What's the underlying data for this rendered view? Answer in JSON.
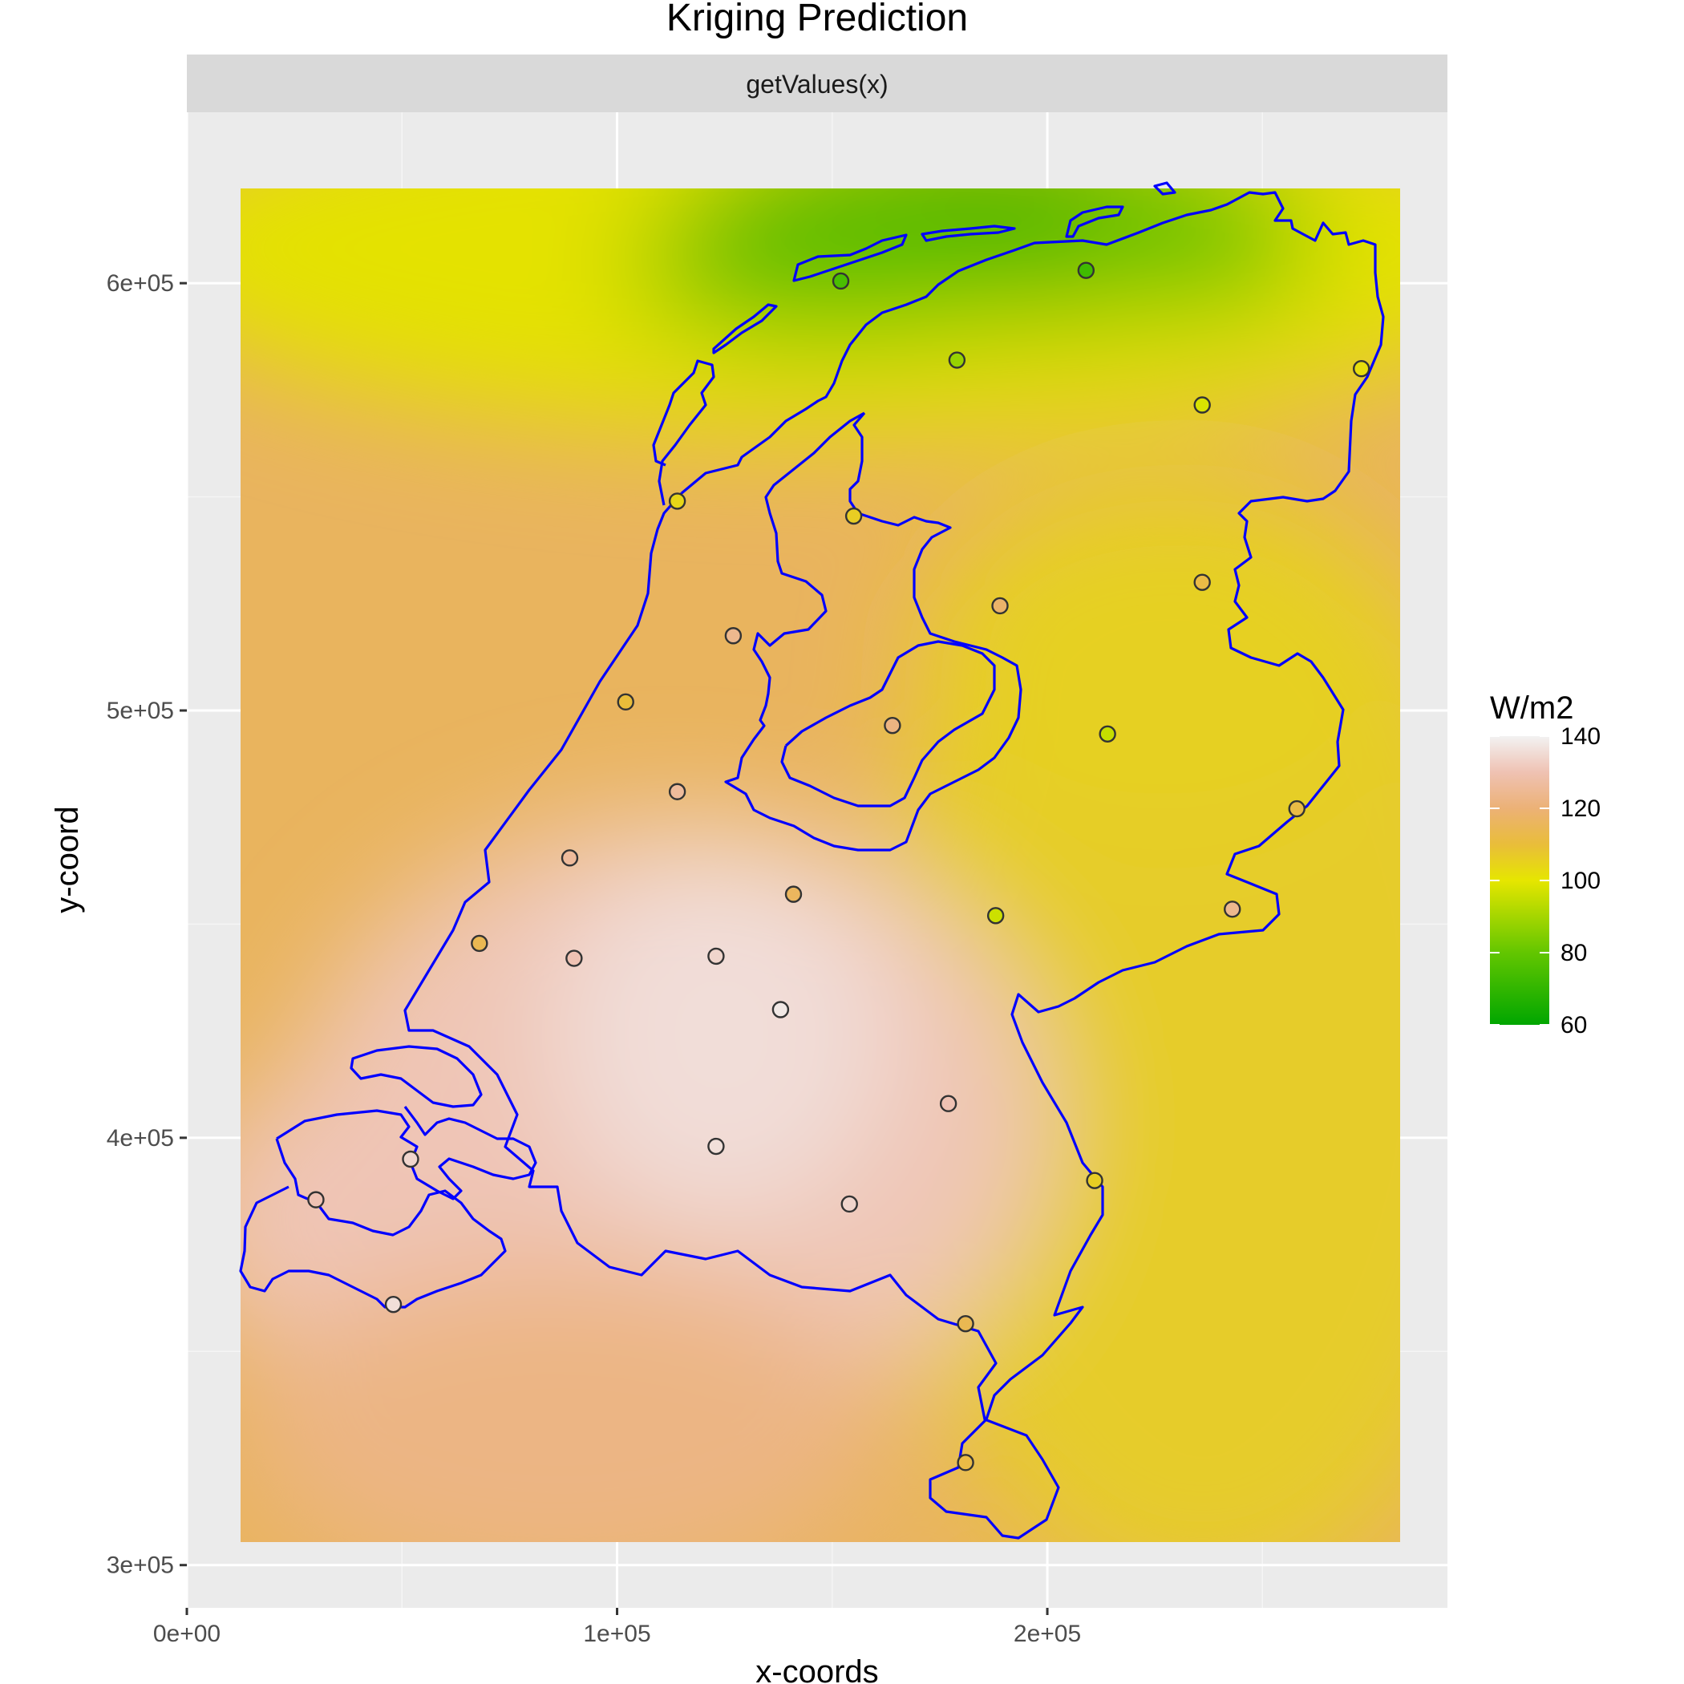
{
  "chart_data": {
    "type": "heatmap",
    "title": "Kriging Prediction",
    "facet_label": "getValues(x)",
    "xlabel": "x-coords",
    "ylabel": "y-coord",
    "xlim": [
      0,
      293000
    ],
    "ylim": [
      290000,
      640000
    ],
    "raster_extent": {
      "x": [
        12000,
        281000
      ],
      "y": [
        306000,
        620000
      ]
    },
    "x_ticks": [
      {
        "value": 0,
        "label": "0e+00"
      },
      {
        "value": 100000,
        "label": "1e+05"
      },
      {
        "value": 200000,
        "label": "2e+05"
      }
    ],
    "y_ticks": [
      {
        "value": 300000,
        "label": "3e+05"
      },
      {
        "value": 400000,
        "label": "4e+05"
      },
      {
        "value": 500000,
        "label": "5e+05"
      },
      {
        "value": 600000,
        "label": "6e+05"
      }
    ],
    "legend": {
      "title": "W/m2",
      "placement": "right",
      "range": [
        60,
        140
      ],
      "ticks": [
        {
          "value": 60,
          "label": "60"
        },
        {
          "value": 80,
          "label": "80"
        },
        {
          "value": 100,
          "label": "100"
        },
        {
          "value": 120,
          "label": "120"
        },
        {
          "value": 140,
          "label": "140"
        }
      ],
      "colors": [
        "#00a600",
        "#63c600",
        "#e6e600",
        "#e9bd3a",
        "#ecb176",
        "#efc2b3",
        "#f2f2f2"
      ]
    },
    "grid": true,
    "outline_color": "#0000ff",
    "stations": [
      {
        "x": 152000,
        "y": 600500,
        "value": 75
      },
      {
        "x": 209000,
        "y": 603000,
        "value": 73
      },
      {
        "x": 179000,
        "y": 582000,
        "value": 88
      },
      {
        "x": 236000,
        "y": 571500,
        "value": 98
      },
      {
        "x": 273000,
        "y": 580000,
        "value": 102
      },
      {
        "x": 114000,
        "y": 549000,
        "value": 104
      },
      {
        "x": 155000,
        "y": 545500,
        "value": 106
      },
      {
        "x": 236000,
        "y": 530000,
        "value": 112
      },
      {
        "x": 189000,
        "y": 524500,
        "value": 118
      },
      {
        "x": 127000,
        "y": 517500,
        "value": 124
      },
      {
        "x": 102000,
        "y": 502000,
        "value": 110
      },
      {
        "x": 164000,
        "y": 496500,
        "value": 122
      },
      {
        "x": 214000,
        "y": 494500,
        "value": 95
      },
      {
        "x": 114000,
        "y": 481000,
        "value": 126
      },
      {
        "x": 258000,
        "y": 477000,
        "value": 112
      },
      {
        "x": 89000,
        "y": 465500,
        "value": 126
      },
      {
        "x": 141000,
        "y": 457000,
        "value": 116
      },
      {
        "x": 188000,
        "y": 452000,
        "value": 96
      },
      {
        "x": 243000,
        "y": 453500,
        "value": 124
      },
      {
        "x": 68000,
        "y": 445500,
        "value": 114
      },
      {
        "x": 90000,
        "y": 442000,
        "value": 130
      },
      {
        "x": 123000,
        "y": 442500,
        "value": 134
      },
      {
        "x": 138000,
        "y": 430000,
        "value": 138
      },
      {
        "x": 177000,
        "y": 408000,
        "value": 130
      },
      {
        "x": 123000,
        "y": 398000,
        "value": 136
      },
      {
        "x": 52000,
        "y": 395000,
        "value": 134
      },
      {
        "x": 30000,
        "y": 385500,
        "value": 130
      },
      {
        "x": 154000,
        "y": 384500,
        "value": 134
      },
      {
        "x": 211000,
        "y": 390000,
        "value": 106
      },
      {
        "x": 48000,
        "y": 361000,
        "value": 136
      },
      {
        "x": 181000,
        "y": 356500,
        "value": 114
      },
      {
        "x": 181000,
        "y": 324000,
        "value": 112
      }
    ]
  }
}
